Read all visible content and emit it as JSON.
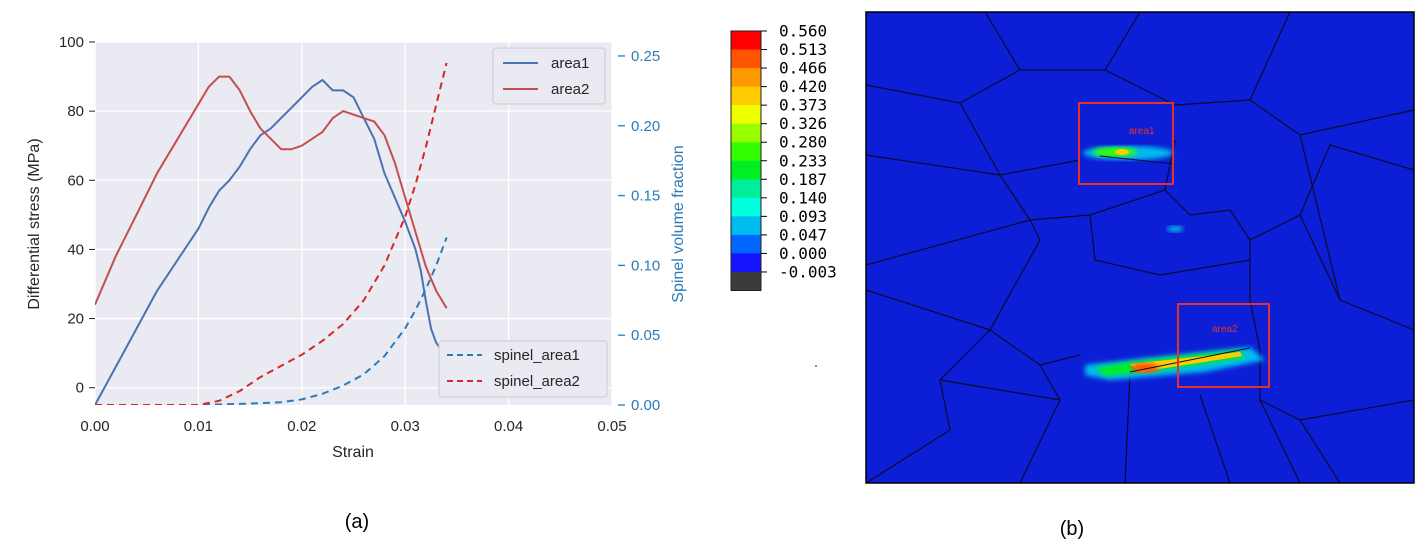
{
  "chart_data": [
    {
      "type": "line",
      "caption": "(a)",
      "xlabel": "Strain",
      "ylabel": "Differential stress (MPa)",
      "y2label": "Spinel volume fraction",
      "xlim": [
        0.0,
        0.05
      ],
      "ylim": [
        -5,
        100
      ],
      "y2lim": [
        0.0,
        0.26
      ],
      "xticks": [
        "0.00",
        "0.01",
        "0.02",
        "0.03",
        "0.04",
        "0.05"
      ],
      "yticks": [
        "0",
        "20",
        "40",
        "60",
        "80",
        "100"
      ],
      "y2ticks": [
        "0.00",
        "0.05",
        "0.10",
        "0.15",
        "0.20",
        "0.25"
      ],
      "grid": true,
      "legend_top": {
        "placement": "top-right",
        "entries": [
          "area1",
          "area2"
        ]
      },
      "legend_bottom": {
        "placement": "bottom-right",
        "entries": [
          "spinel_area1",
          "spinel_area2"
        ]
      },
      "series": [
        {
          "name": "area1",
          "axis": "left",
          "style": "solid",
          "color": "#4c72b0",
          "x": [
            0.0,
            0.002,
            0.004,
            0.006,
            0.008,
            0.01,
            0.011,
            0.012,
            0.013,
            0.014,
            0.015,
            0.016,
            0.017,
            0.018,
            0.019,
            0.02,
            0.021,
            0.022,
            0.023,
            0.024,
            0.025,
            0.026,
            0.027,
            0.028,
            0.029,
            0.03,
            0.031,
            0.0315,
            0.032,
            0.0325,
            0.033,
            0.0335,
            0.034
          ],
          "y": [
            -5,
            6,
            17,
            28,
            37,
            46,
            52,
            57,
            60,
            64,
            69,
            73,
            75,
            78,
            81,
            84,
            87,
            89,
            86,
            86,
            84,
            78,
            72,
            62,
            55,
            48,
            40,
            34,
            25,
            17,
            13,
            11,
            10
          ]
        },
        {
          "name": "area2",
          "axis": "left",
          "style": "solid",
          "color": "#c44e52",
          "x": [
            0.0,
            0.002,
            0.004,
            0.006,
            0.008,
            0.01,
            0.011,
            0.012,
            0.013,
            0.014,
            0.015,
            0.016,
            0.017,
            0.018,
            0.019,
            0.02,
            0.021,
            0.022,
            0.023,
            0.024,
            0.025,
            0.026,
            0.027,
            0.028,
            0.029,
            0.03,
            0.031,
            0.032,
            0.033,
            0.034
          ],
          "y": [
            24,
            38,
            50,
            62,
            72,
            82,
            87,
            90,
            90,
            86,
            80,
            75,
            72,
            69,
            69,
            70,
            72,
            74,
            78,
            80,
            79,
            78,
            77,
            73,
            65,
            55,
            45,
            35,
            28,
            23
          ]
        },
        {
          "name": "spinel_area1",
          "axis": "right",
          "style": "dashed",
          "color": "#2b7bb9",
          "x": [
            0.0,
            0.01,
            0.015,
            0.018,
            0.02,
            0.022,
            0.024,
            0.026,
            0.028,
            0.03,
            0.031,
            0.032,
            0.033,
            0.034
          ],
          "y": [
            0.0,
            0.0,
            0.001,
            0.002,
            0.004,
            0.008,
            0.014,
            0.022,
            0.035,
            0.055,
            0.068,
            0.083,
            0.1,
            0.12
          ]
        },
        {
          "name": "spinel_area2",
          "axis": "right",
          "style": "dashed",
          "color": "#d62728",
          "x": [
            0.0,
            0.01,
            0.012,
            0.014,
            0.016,
            0.018,
            0.02,
            0.022,
            0.024,
            0.026,
            0.028,
            0.03,
            0.031,
            0.032,
            0.033,
            0.034
          ],
          "y": [
            0.0,
            0.0,
            0.003,
            0.01,
            0.02,
            0.028,
            0.036,
            0.046,
            0.058,
            0.075,
            0.1,
            0.135,
            0.158,
            0.185,
            0.215,
            0.245
          ]
        }
      ]
    },
    {
      "type": "heatmap",
      "caption": "(b)",
      "colorbar": {
        "levels": [
          "0.560",
          "0.513",
          "0.466",
          "0.420",
          "0.373",
          "0.326",
          "0.280",
          "0.233",
          "0.187",
          "0.140",
          "0.093",
          "0.047",
          "0.000",
          "-0.003"
        ],
        "colors": [
          "#ff0000",
          "#ff5500",
          "#ff9900",
          "#ffcc00",
          "#eeff00",
          "#99ff00",
          "#33ff00",
          "#00ee22",
          "#00ee99",
          "#00ffdd",
          "#00bbee",
          "#0066ff",
          "#1414ff",
          "#3a3a3a"
        ]
      },
      "background_color": "#0d1fd6",
      "regions": [
        {
          "label": "area1"
        },
        {
          "label": "area2"
        }
      ]
    }
  ]
}
